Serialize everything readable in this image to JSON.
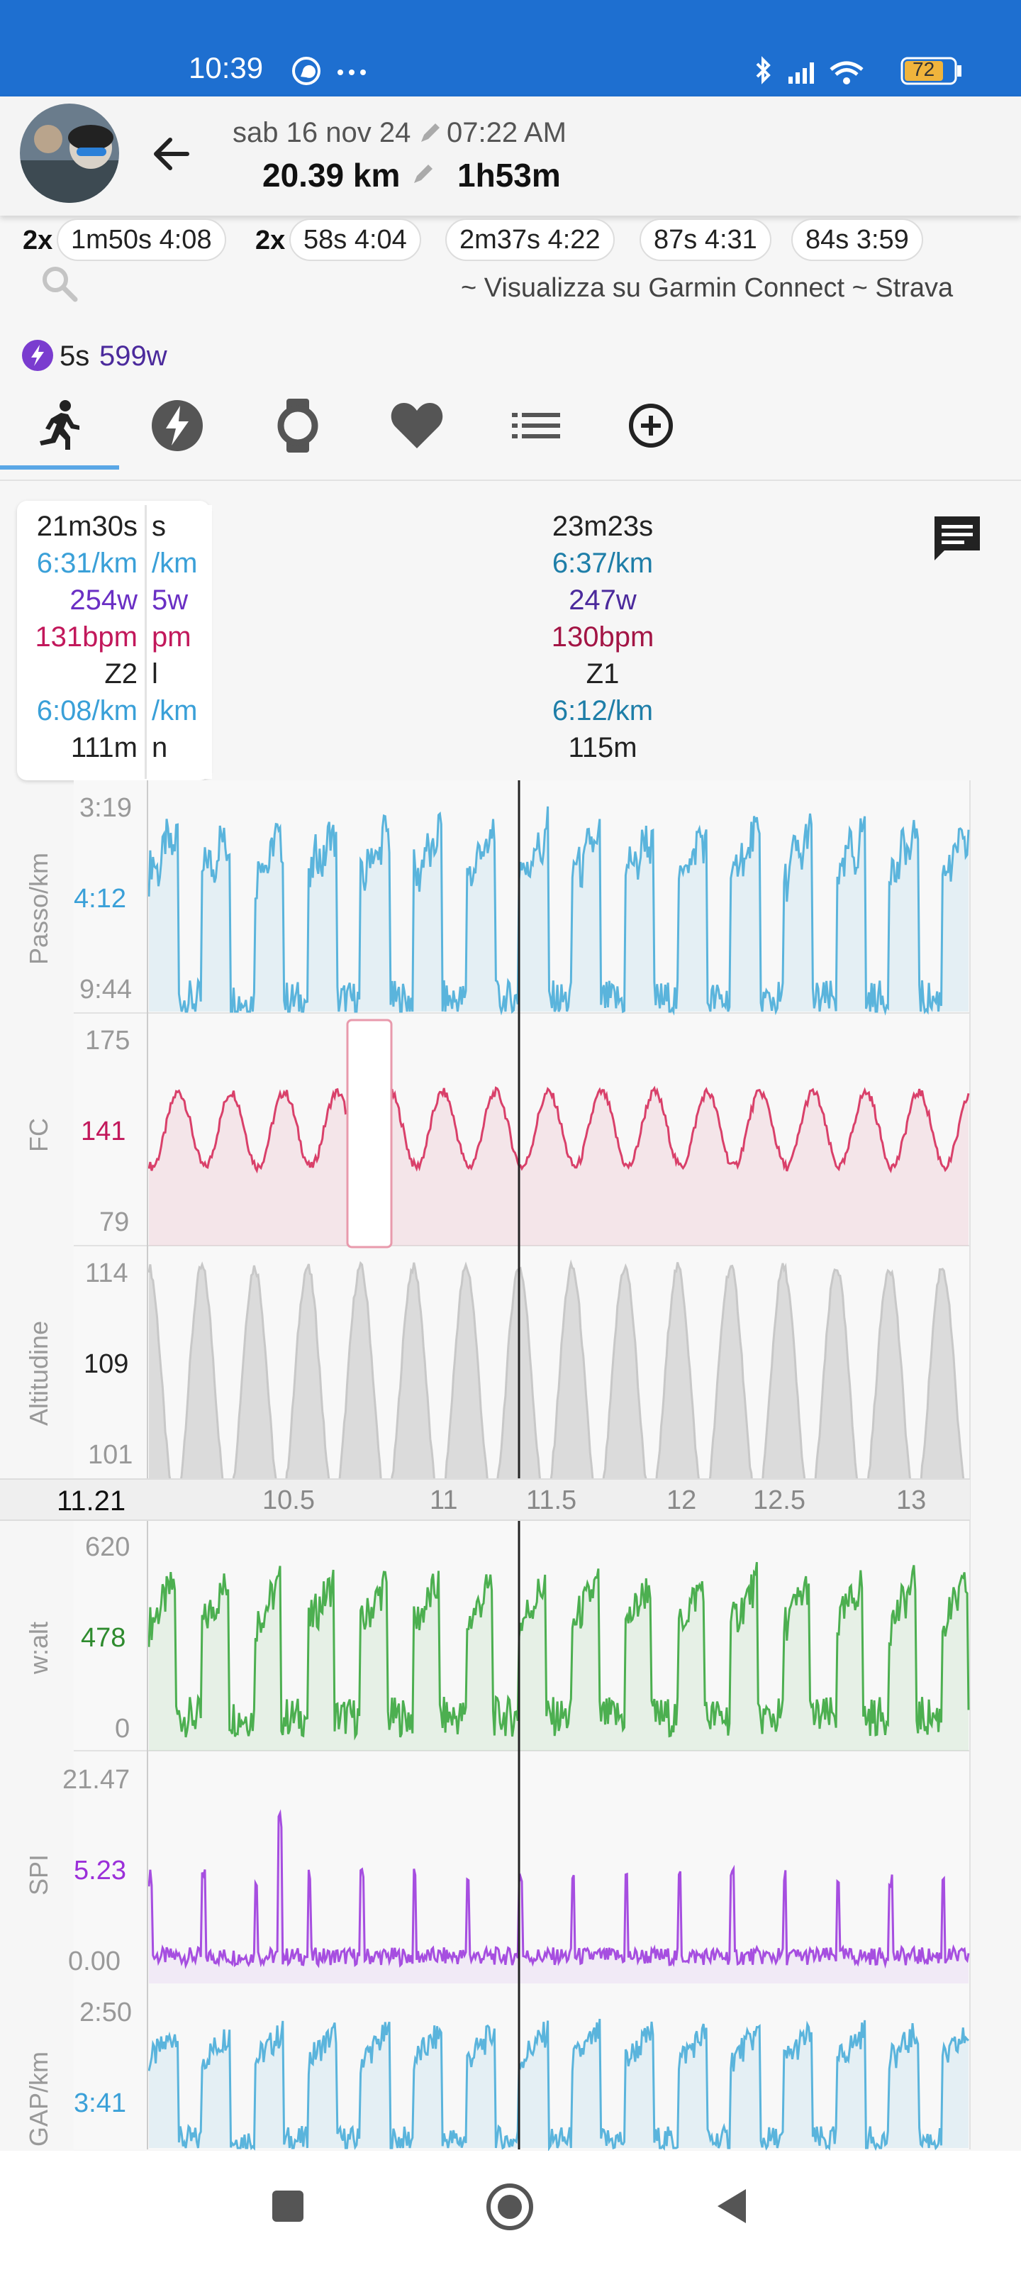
{
  "status": {
    "time": "10:39",
    "battery": "72"
  },
  "header": {
    "date": "sab 16 nov 24",
    "start_time": "07:22 AM",
    "distance": "20.39 km",
    "duration": "1h53m"
  },
  "intervals": [
    {
      "count": "2x",
      "label": "1m50s 4:08"
    },
    {
      "count": "2x",
      "label": "58s 4:04"
    },
    {
      "count": "",
      "label": "2m37s 4:22"
    },
    {
      "count": "",
      "label": "87s 4:31"
    },
    {
      "count": "",
      "label": "84s 3:59"
    }
  ],
  "links": {
    "text": "~ Visualizza su Garmin Connect ~ Strava"
  },
  "power_peak": {
    "duration": "5s",
    "value": "599w"
  },
  "tabs": [
    {
      "name": "run",
      "icon": "run-icon"
    },
    {
      "name": "power",
      "icon": "lightning-icon"
    },
    {
      "name": "watch",
      "icon": "watch-icon"
    },
    {
      "name": "heart",
      "icon": "heart-icon"
    },
    {
      "name": "laps",
      "icon": "list-icon"
    },
    {
      "name": "add",
      "icon": "plus-circle-icon"
    }
  ],
  "left_info": {
    "time": "21m30s",
    "pace": "6:31/km",
    "power": "254w",
    "hr": "131bpm",
    "zone": "Z2",
    "gap": "6:08/km",
    "elev": "111m"
  },
  "peek_info": {
    "time": "s",
    "pace": "/km",
    "power": "5w",
    "hr": "pm",
    "zone": "l",
    "gap": "/km",
    "elev": "n"
  },
  "cursor_info": {
    "time": "23m23s",
    "pace": "6:37/km",
    "power": "247w",
    "hr": "130bpm",
    "zone": "Z1",
    "gap": "6:12/km",
    "elev": "115m"
  },
  "charts": {
    "pace": {
      "axis_label": "Passo/km",
      "top": "3:19",
      "mid": "4:12",
      "bottom": "9:44",
      "color": "#5ab4dc"
    },
    "hr": {
      "axis_label": "FC",
      "top": "175",
      "mid": "141",
      "bottom": "79",
      "color": "#d9406a"
    },
    "alt": {
      "axis_label": "Altitudine",
      "top": "114",
      "mid": "109",
      "bottom": "101",
      "color": "#c8c8c8"
    },
    "power": {
      "axis_label": "w:alt",
      "top": "620",
      "mid": "478",
      "bottom": "0",
      "color": "#4caf50"
    },
    "spi": {
      "axis_label": "SPI",
      "top": "21.47",
      "mid": "5.23",
      "bottom": "0.00",
      "color": "#a64ee0"
    },
    "gap": {
      "axis_label": "GAP/km",
      "top": "2:50",
      "mid": "3:41",
      "color": "#5ab4dc"
    }
  },
  "distance_axis": {
    "current": "11.21",
    "ticks": [
      "10.5",
      "11",
      "11.5",
      "12",
      "12.5",
      "13"
    ]
  }
}
